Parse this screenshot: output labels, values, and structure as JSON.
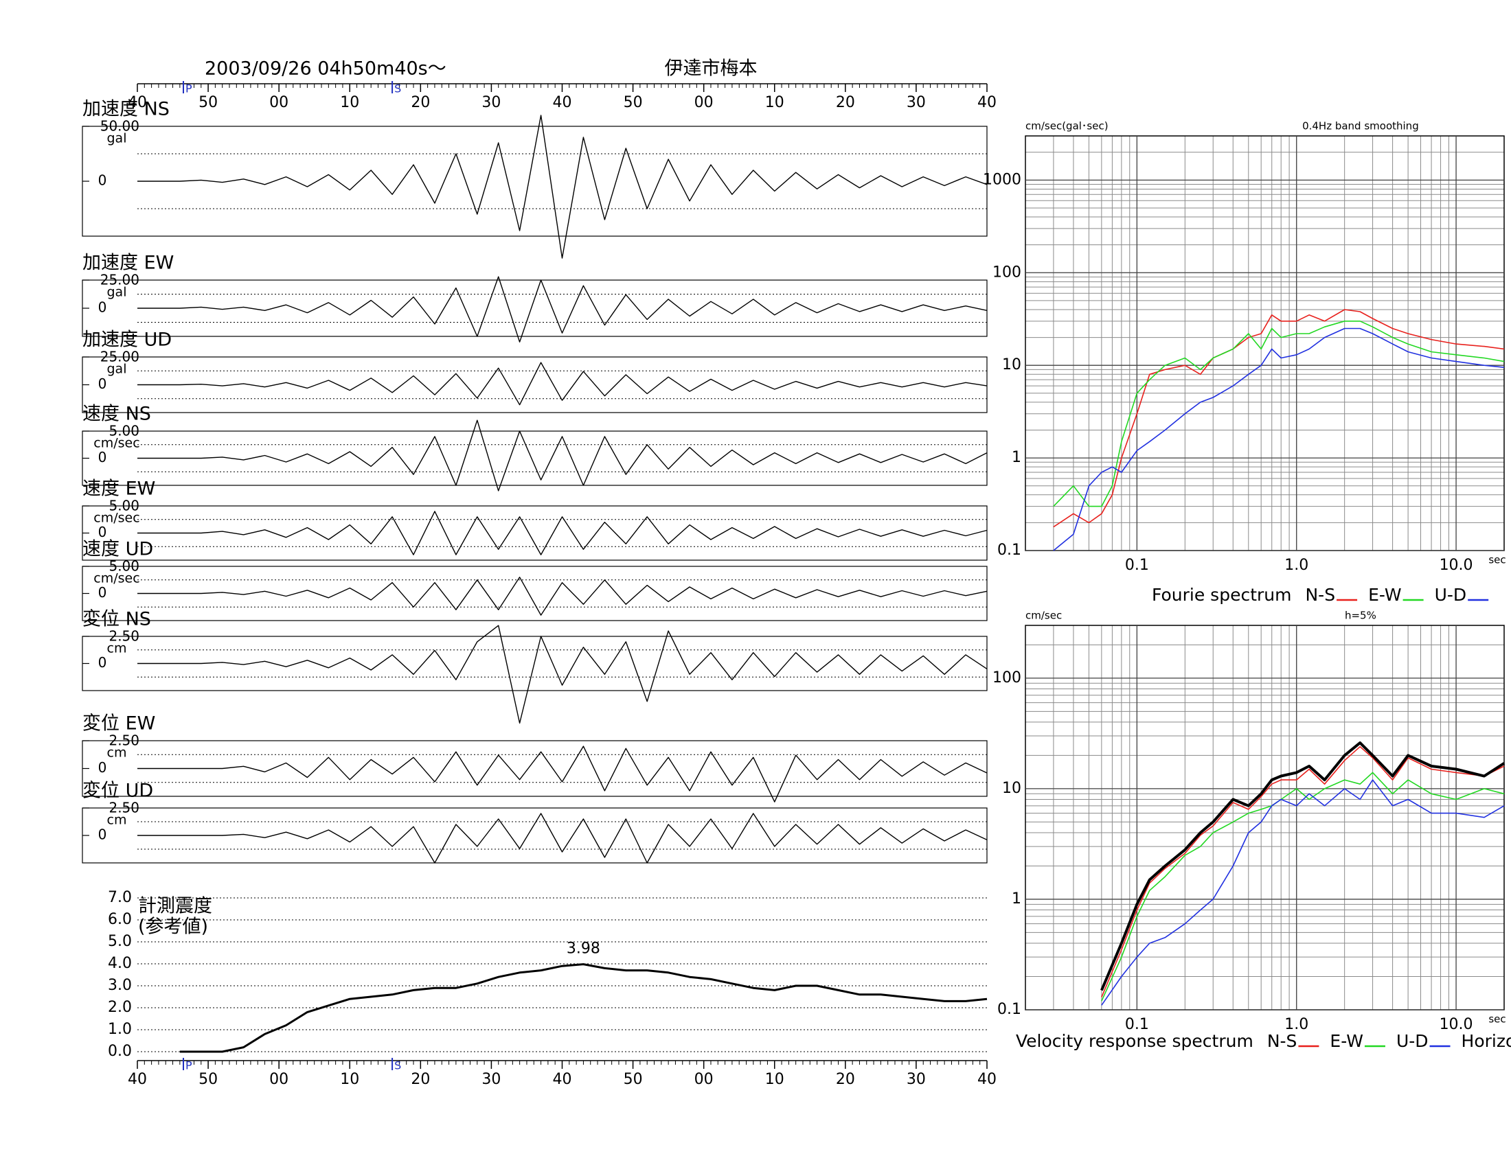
{
  "chart_data": [
    {
      "type": "seismogram",
      "title": "2003/09/26  04h50m40s～",
      "subtitle": "伊達市梅本",
      "xlim": [
        0,
        120
      ],
      "xticks": [
        {
          "value": 0,
          "label": "40"
        },
        {
          "value": 10,
          "label": "50"
        },
        {
          "value": 20,
          "label": "00"
        },
        {
          "value": 30,
          "label": "10"
        },
        {
          "value": 40,
          "label": "20"
        },
        {
          "value": 50,
          "label": "30"
        },
        {
          "value": 60,
          "label": "40"
        },
        {
          "value": 70,
          "label": "50"
        },
        {
          "value": 80,
          "label": "00"
        },
        {
          "value": 90,
          "label": "10"
        },
        {
          "value": 100,
          "label": "20"
        },
        {
          "value": 110,
          "label": "30"
        },
        {
          "value": 120,
          "label": "40"
        }
      ],
      "phase_markers": [
        {
          "value": 6.5,
          "label": "P"
        },
        {
          "value": 36,
          "label": "S"
        }
      ],
      "x": [
        0,
        3,
        6,
        9,
        12,
        15,
        18,
        21,
        24,
        27,
        30,
        33,
        36,
        39,
        42,
        45,
        48,
        51,
        54,
        57,
        60,
        63,
        66,
        69,
        72,
        75,
        78,
        81,
        84,
        87,
        90,
        93,
        96,
        99,
        102,
        105,
        108,
        111,
        114,
        117,
        120
      ],
      "series": [
        {
          "name": "加速度 NS",
          "unit": "gal",
          "color": "#000000",
          "ylim": [
            -50,
            50
          ],
          "yticks": [
            {
              "value": 50,
              "label": "50.00"
            },
            0
          ],
          "values": [
            0,
            0,
            0,
            1,
            -1,
            2,
            -3,
            4,
            -5,
            6,
            -8,
            10,
            -12,
            15,
            -20,
            25,
            -30,
            35,
            -45,
            60,
            -70,
            40,
            -35,
            30,
            -25,
            20,
            -18,
            15,
            -12,
            10,
            -9,
            8,
            -7,
            6,
            -6,
            5,
            -5,
            4,
            -4,
            4,
            -3
          ]
        },
        {
          "name": "加速度 EW",
          "unit": "gal",
          "color": "#000000",
          "ylim": [
            -25,
            25
          ],
          "yticks": [
            {
              "value": 25,
              "label": "25.00"
            },
            0
          ],
          "values": [
            0,
            0,
            0,
            1,
            -1,
            1,
            -2,
            3,
            -4,
            5,
            -6,
            7,
            -8,
            10,
            -14,
            18,
            -25,
            28,
            -30,
            25,
            -22,
            20,
            -15,
            12,
            -10,
            8,
            -7,
            6,
            -5,
            8,
            -6,
            5,
            -4,
            4,
            -3,
            3,
            -3,
            3,
            -2,
            2,
            -2
          ]
        },
        {
          "name": "加速度 UD",
          "unit": "gal",
          "color": "#000000",
          "ylim": [
            -25,
            25
          ],
          "yticks": [
            {
              "value": 25,
              "label": "25.00"
            },
            0
          ],
          "values": [
            0,
            0,
            0,
            0.5,
            -1,
            1,
            -2,
            2,
            -3,
            4,
            -5,
            6,
            -7,
            8,
            -9,
            10,
            -12,
            15,
            -18,
            20,
            -14,
            12,
            -10,
            9,
            -8,
            7,
            -6,
            5,
            -5,
            4,
            -4,
            3,
            -3,
            3,
            -2,
            2,
            -2,
            2,
            -2,
            2,
            -1
          ]
        },
        {
          "name": "速度 NS",
          "unit": "cm/sec",
          "color": "#000000",
          "ylim": [
            -5,
            5
          ],
          "yticks": [
            {
              "value": 5,
              "label": "5.00"
            },
            0
          ],
          "values": [
            0,
            0,
            0,
            0,
            0.2,
            -0.3,
            0.5,
            -0.7,
            0.8,
            -1,
            1.2,
            -1.5,
            2,
            -3,
            4,
            -5,
            7,
            -6,
            5,
            -4,
            4,
            -5,
            4,
            -3,
            2.5,
            -2,
            2,
            -1.5,
            1.5,
            -1.2,
            1,
            -1,
            1,
            -0.8,
            0.8,
            -0.8,
            0.7,
            -0.7,
            0.8,
            -1,
            1
          ]
        },
        {
          "name": "速度 EW",
          "unit": "cm/sec",
          "color": "#000000",
          "ylim": [
            -5,
            5
          ],
          "yticks": [
            {
              "value": 5,
              "label": "5.00"
            },
            0
          ],
          "values": [
            0,
            0,
            0,
            0,
            0.3,
            -0.3,
            0.6,
            -0.8,
            1,
            -1.2,
            1.5,
            -2,
            3,
            -4,
            4,
            -4,
            3,
            -3,
            3,
            -4,
            3,
            -3,
            2,
            -2,
            3,
            -2,
            1.5,
            -1.2,
            1,
            -1,
            1.2,
            -1,
            0.8,
            -0.7,
            0.7,
            -0.6,
            0.6,
            -0.6,
            0.5,
            -0.5,
            0.5
          ]
        },
        {
          "name": "速度 UD",
          "unit": "cm/sec",
          "color": "#000000",
          "ylim": [
            -5,
            5
          ],
          "yticks": [
            {
              "value": 5,
              "label": "5.00"
            },
            0
          ],
          "values": [
            0,
            0,
            0,
            0,
            0.2,
            -0.2,
            0.4,
            -0.5,
            0.6,
            -0.8,
            1,
            -1.2,
            2,
            -2.5,
            2,
            -3,
            2.5,
            -3,
            3,
            -4,
            2,
            -2,
            2.5,
            -2,
            1.5,
            -1.5,
            1.2,
            -1,
            1,
            -1,
            0.8,
            -0.8,
            0.7,
            -0.6,
            0.6,
            -0.6,
            0.5,
            -0.5,
            0.5,
            -0.4,
            0.4
          ]
        },
        {
          "name": "変位 NS",
          "unit": "cm",
          "color": "#000000",
          "ylim": [
            -2.5,
            2.5
          ],
          "yticks": [
            {
              "value": 2.5,
              "label": "2.50"
            },
            0
          ],
          "values": [
            0,
            0,
            0,
            0,
            0.1,
            -0.1,
            0.2,
            -0.3,
            0.3,
            -0.4,
            0.5,
            -0.6,
            0.8,
            -1,
            1.2,
            -1.5,
            2,
            3.5,
            -5.5,
            2.5,
            -2,
            1.5,
            -1,
            2,
            -3.5,
            3,
            -1,
            1,
            -1.5,
            1,
            -1.2,
            1,
            -0.8,
            0.8,
            -1,
            0.8,
            -0.7,
            0.7,
            -1,
            0.8,
            -0.5
          ]
        },
        {
          "name": "変位 EW",
          "unit": "cm",
          "color": "#000000",
          "ylim": [
            -2.5,
            2.5
          ],
          "yticks": [
            {
              "value": 2.5,
              "label": "2.50"
            },
            0
          ],
          "values": [
            0,
            0,
            0,
            0,
            0,
            0.2,
            -0.3,
            0.5,
            -0.8,
            1,
            -1,
            0.8,
            -0.5,
            1,
            -1.2,
            1.5,
            -1.5,
            1.2,
            -1,
            1.5,
            -1.2,
            2,
            -2,
            1.8,
            -1.5,
            1,
            -2,
            1.5,
            -1.5,
            1,
            -3,
            1.2,
            -1,
            0.8,
            -1,
            0.8,
            -0.7,
            0.6,
            -0.6,
            0.5,
            -0.4
          ]
        },
        {
          "name": "変位 UD",
          "unit": "cm",
          "color": "#000000",
          "ylim": [
            -2.5,
            2.5
          ],
          "yticks": [
            {
              "value": 2.5,
              "label": "2.50"
            },
            0
          ],
          "values": [
            0,
            0,
            0,
            0,
            0,
            0.1,
            -0.2,
            0.3,
            -0.3,
            0.5,
            -0.6,
            0.8,
            -1,
            0.8,
            -2.5,
            1,
            -1,
            1.5,
            -1.2,
            2,
            -1.5,
            1.5,
            -2,
            1.5,
            -2.5,
            1,
            -1,
            1.5,
            -1.2,
            2,
            -1,
            1,
            -0.8,
            1,
            -0.8,
            0.7,
            -0.7,
            0.6,
            -0.5,
            0.5,
            -0.4
          ]
        }
      ]
    },
    {
      "type": "line",
      "title": "計測震度",
      "subtitle": "(参考値)",
      "xlim": [
        0,
        120
      ],
      "xticks": [
        {
          "value": 0,
          "label": "40"
        },
        {
          "value": 10,
          "label": "50"
        },
        {
          "value": 20,
          "label": "00"
        },
        {
          "value": 30,
          "label": "10"
        },
        {
          "value": 40,
          "label": "20"
        },
        {
          "value": 50,
          "label": "30"
        },
        {
          "value": 60,
          "label": "40"
        },
        {
          "value": 70,
          "label": "50"
        },
        {
          "value": 80,
          "label": "00"
        },
        {
          "value": 90,
          "label": "10"
        },
        {
          "value": 100,
          "label": "20"
        },
        {
          "value": 110,
          "label": "30"
        },
        {
          "value": 120,
          "label": "40"
        }
      ],
      "phase_markers": [
        {
          "value": 6.5,
          "label": "P"
        },
        {
          "value": 36,
          "label": "S"
        }
      ],
      "ylim": [
        0,
        7
      ],
      "yticks": [
        {
          "value": 0,
          "label": "0.0"
        },
        {
          "value": 1,
          "label": "1.0"
        },
        {
          "value": 2,
          "label": "2.0"
        },
        {
          "value": 3,
          "label": "3.0"
        },
        {
          "value": 4,
          "label": "4.0"
        },
        {
          "value": 5,
          "label": "5.0"
        },
        {
          "value": 6,
          "label": "6.0"
        },
        {
          "value": 7,
          "label": "7.0"
        }
      ],
      "grid": true,
      "x": [
        0,
        3,
        6,
        9,
        12,
        15,
        18,
        21,
        24,
        27,
        30,
        33,
        36,
        39,
        42,
        45,
        48,
        51,
        54,
        57,
        60,
        63,
        66,
        69,
        72,
        75,
        78,
        81,
        84,
        87,
        90,
        93,
        96,
        99,
        102,
        105,
        108,
        111,
        114,
        117,
        120
      ],
      "color": "#000000",
      "values": [
        null,
        null,
        0,
        0,
        0,
        0.2,
        0.8,
        1.2,
        1.8,
        2.1,
        2.4,
        2.5,
        2.6,
        2.8,
        2.9,
        2.9,
        3.1,
        3.4,
        3.6,
        3.7,
        3.9,
        3.98,
        3.8,
        3.7,
        3.7,
        3.6,
        3.4,
        3.3,
        3.1,
        2.9,
        2.8,
        3.0,
        3.0,
        2.8,
        2.6,
        2.6,
        2.5,
        2.4,
        2.3,
        2.3,
        2.4
      ],
      "annotation": {
        "x": 63,
        "value": 3.98
      }
    },
    {
      "type": "line",
      "title": "Fourie spectrum",
      "subtitle": "0.4Hz band smoothing",
      "y_label": "cm/sec(gal･sec)",
      "x_label": "sec",
      "xscale": "log",
      "yscale": "log",
      "grid": true,
      "frame": true,
      "xlim": [
        0.02,
        20
      ],
      "ylim": [
        0.1,
        3000
      ],
      "xticks": [
        0.1,
        {
          "value": 1,
          "label": "1.0"
        },
        {
          "value": 10,
          "label": "10.0"
        }
      ],
      "yticks": [
        0.1,
        1,
        10,
        100,
        1000
      ],
      "x": [
        0.03,
        0.04,
        0.05,
        0.06,
        0.07,
        0.08,
        0.1,
        0.12,
        0.15,
        0.2,
        0.25,
        0.3,
        0.4,
        0.5,
        0.6,
        0.7,
        0.8,
        1.0,
        1.2,
        1.5,
        2,
        2.5,
        3,
        4,
        5,
        7,
        10,
        15,
        20
      ],
      "series": [
        {
          "name": "N-S",
          "color": "#e8201c",
          "values": [
            0.18,
            0.25,
            0.2,
            0.25,
            0.4,
            1.0,
            3,
            8,
            9,
            10,
            8,
            12,
            15,
            20,
            22,
            35,
            30,
            30,
            35,
            30,
            40,
            38,
            32,
            25,
            22,
            19,
            17,
            16,
            15
          ]
        },
        {
          "name": "E-W",
          "color": "#22d822",
          "values": [
            0.3,
            0.5,
            0.3,
            0.3,
            0.5,
            1.5,
            5,
            7,
            10,
            12,
            9,
            12,
            15,
            22,
            15,
            25,
            20,
            22,
            22,
            26,
            30,
            30,
            26,
            20,
            17,
            14,
            13,
            12,
            11
          ]
        },
        {
          "name": "U-D",
          "color": "#2030e0",
          "values": [
            0.1,
            0.15,
            0.5,
            0.7,
            0.8,
            0.7,
            1.2,
            1.5,
            2,
            3,
            4,
            4.5,
            6,
            8,
            10,
            15,
            12,
            13,
            15,
            20,
            25,
            25,
            22,
            17,
            14,
            12,
            11,
            10,
            9.5
          ]
        }
      ]
    },
    {
      "type": "line",
      "title": "Velocity response spectrum",
      "subtitle": "h=5%",
      "y_label": "cm/sec",
      "x_label": "sec",
      "xscale": "log",
      "yscale": "log",
      "grid": true,
      "frame": true,
      "xlim": [
        0.02,
        20
      ],
      "ylim": [
        0.1,
        300
      ],
      "xticks": [
        0.1,
        {
          "value": 1,
          "label": "1.0"
        },
        {
          "value": 10,
          "label": "10.0"
        }
      ],
      "yticks": [
        0.1,
        1,
        10,
        100
      ],
      "x": [
        0.06,
        0.08,
        0.1,
        0.12,
        0.15,
        0.2,
        0.25,
        0.3,
        0.4,
        0.5,
        0.6,
        0.7,
        0.8,
        1.0,
        1.2,
        1.5,
        2,
        2.5,
        3,
        4,
        5,
        7,
        10,
        15,
        20
      ],
      "series": [
        {
          "name": "N-S",
          "color": "#e8201c",
          "values": [
            0.13,
            0.35,
            0.8,
            1.4,
            1.9,
            2.6,
            3.8,
            4.6,
            7.5,
            6.5,
            8.5,
            11,
            12,
            12,
            15,
            11,
            18,
            24,
            19,
            12,
            19,
            15,
            14,
            13,
            16
          ]
        },
        {
          "name": "E-W",
          "color": "#22d822",
          "values": [
            0.12,
            0.3,
            0.7,
            1.2,
            1.6,
            2.5,
            3,
            4,
            5,
            6,
            6.5,
            7,
            8,
            10,
            8,
            10,
            12,
            11,
            14,
            9,
            12,
            9,
            8,
            10,
            9
          ]
        },
        {
          "name": "U-D",
          "color": "#2030e0",
          "values": [
            0.11,
            0.2,
            0.3,
            0.4,
            0.45,
            0.6,
            0.8,
            1,
            2,
            4,
            5,
            7,
            8,
            7,
            9,
            7,
            10,
            8,
            12,
            7,
            8,
            6,
            6,
            5.5,
            7
          ]
        },
        {
          "name": "Horizon",
          "color": "#000000",
          "width": 4,
          "values": [
            0.15,
            0.4,
            0.9,
            1.5,
            2,
            2.8,
            4,
            5,
            8,
            7,
            9,
            12,
            13,
            14,
            16,
            12,
            20,
            26,
            20,
            13,
            20,
            16,
            15,
            13,
            17
          ]
        }
      ]
    }
  ]
}
